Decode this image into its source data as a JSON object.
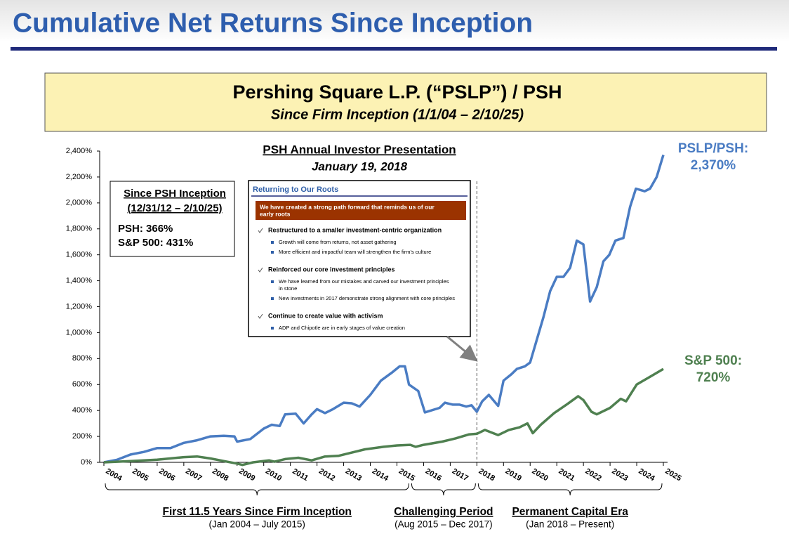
{
  "header": {
    "title": "Cumulative Net Returns Since Inception"
  },
  "banner": {
    "title": "Pershing Square L.P. (“PSLP”) / PSH",
    "subtitle": "Since Firm Inception (1/1/04 – 2/10/25)"
  },
  "chart_data": {
    "type": "line",
    "xlim": [
      2004,
      2025
    ],
    "xticks": [
      2004,
      2005,
      2006,
      2007,
      2008,
      2009,
      2010,
      2011,
      2012,
      2013,
      2014,
      2015,
      2016,
      2017,
      2018,
      2019,
      2020,
      2021,
      2022,
      2023,
      2024,
      2025
    ],
    "ylim": [
      0,
      2400
    ],
    "yticks": [
      {
        "value": 0,
        "label": "0%"
      },
      {
        "value": 200,
        "label": "200%"
      },
      {
        "value": 400,
        "label": "400%"
      },
      {
        "value": 600,
        "label": "600%"
      },
      {
        "value": 800,
        "label": "800%"
      },
      {
        "value": 1000,
        "label": "1,000%"
      },
      {
        "value": 1200,
        "label": "1,200%"
      },
      {
        "value": 1400,
        "label": "1,400%"
      },
      {
        "value": 1600,
        "label": "1,600%"
      },
      {
        "value": 1800,
        "label": "1,800%"
      },
      {
        "value": 2000,
        "label": "2,000%"
      },
      {
        "value": 2200,
        "label": "2,200%"
      },
      {
        "value": 2400,
        "label": "2,400%"
      }
    ],
    "grid": false,
    "series": [
      {
        "name": "PSLP/PSH:",
        "end_label": "2,370%",
        "color": "#4a7cc3",
        "x": [
          2004,
          2004.5,
          2005,
          2005.5,
          2006,
          2006.5,
          2007,
          2007.5,
          2008,
          2008.5,
          2008.9,
          2009,
          2009.5,
          2010,
          2010.3,
          2010.6,
          2010.8,
          2011.2,
          2011.5,
          2011.8,
          2012,
          2012.3,
          2012.6,
          2013,
          2013.3,
          2013.6,
          2014,
          2014.4,
          2014.8,
          2015.1,
          2015.3,
          2015.45,
          2015.8,
          2016.05,
          2016.6,
          2016.8,
          2017.1,
          2017.35,
          2017.6,
          2017.8,
          2018,
          2018.2,
          2018.45,
          2018.8,
          2019,
          2019.3,
          2019.5,
          2019.8,
          2020,
          2020.3,
          2020.5,
          2020.75,
          2021,
          2021.25,
          2021.5,
          2021.75,
          2022,
          2022.25,
          2022.5,
          2022.75,
          2022.97,
          2023.2,
          2023.5,
          2023.75,
          2023.97,
          2024.3,
          2024.5,
          2024.75,
          2025
        ],
        "values": [
          0,
          20,
          60,
          80,
          110,
          110,
          150,
          170,
          200,
          205,
          200,
          160,
          180,
          260,
          290,
          280,
          370,
          375,
          300,
          370,
          410,
          380,
          410,
          460,
          455,
          430,
          520,
          630,
          690,
          740,
          740,
          600,
          550,
          385,
          420,
          460,
          445,
          445,
          430,
          440,
          390,
          470,
          520,
          435,
          630,
          680,
          720,
          740,
          770,
          980,
          1120,
          1320,
          1430,
          1430,
          1500,
          1710,
          1680,
          1240,
          1350,
          1550,
          1600,
          1710,
          1730,
          1970,
          2110,
          2090,
          2110,
          2200,
          2370
        ]
      },
      {
        "name": "S&P 500:",
        "end_label": "720%",
        "color": "#4f8050",
        "x": [
          2004,
          2005,
          2006,
          2007,
          2007.5,
          2008,
          2008.5,
          2009,
          2009.2,
          2009.6,
          2010.2,
          2010.4,
          2010.8,
          2011.3,
          2011.8,
          2012.3,
          2012.8,
          2013.2,
          2013.8,
          2014.5,
          2015,
          2015.5,
          2015.7,
          2016,
          2016.7,
          2017.2,
          2017.7,
          2018,
          2018.3,
          2018.8,
          2019.2,
          2019.6,
          2019.9,
          2020.1,
          2020.4,
          2020.9,
          2021.4,
          2021.8,
          2022,
          2022.3,
          2022.5,
          2023,
          2023.4,
          2023.6,
          2024,
          2024.5,
          2025
        ],
        "values": [
          0,
          10,
          20,
          40,
          45,
          30,
          10,
          -10,
          -20,
          0,
          15,
          5,
          25,
          35,
          15,
          45,
          50,
          70,
          100,
          120,
          130,
          135,
          120,
          135,
          160,
          185,
          215,
          220,
          250,
          210,
          250,
          270,
          300,
          225,
          290,
          380,
          450,
          510,
          480,
          390,
          370,
          420,
          490,
          470,
          600,
          660,
          720
        ]
      }
    ],
    "inset": {
      "title": "Since PSH Inception",
      "dates": "(12/31/12 – 2/10/25)",
      "lines": [
        "PSH: 366%",
        "S&P 500: 431%"
      ]
    },
    "presentation": {
      "x": 2018,
      "title": "PSH Annual Investor Presentation",
      "date": "January 19, 2018"
    },
    "periods": [
      {
        "label": "First 11.5 Years Since Firm Inception",
        "dates": "(Jan 2004 – July 2015)",
        "from": 2004,
        "to": 2015.5
      },
      {
        "label": "Challenging Period",
        "dates": "(Aug 2015 – Dec 2017)",
        "from": 2015.5,
        "to": 2018
      },
      {
        "label": "Permanent Capital Era",
        "dates": "(Jan 2018 – Present)",
        "from": 2018,
        "to": 2025
      }
    ]
  },
  "slide": {
    "title": "Returning to Our Roots",
    "banner": [
      "We have created a strong path forward that reminds us of our",
      "early roots"
    ],
    "sections": [
      {
        "heading": "Restructured to a smaller investment-centric organization",
        "bullets": [
          [
            "Growth will come from returns, not asset gathering"
          ],
          [
            "More efficient and impactful team will strengthen the firm’s culture"
          ]
        ]
      },
      {
        "heading": "Reinforced our core investment principles",
        "bullets": [
          [
            "We have learned from our mistakes and carved our investment principles",
            "in stone"
          ],
          [
            "New investments in 2017 demonstrate strong alignment with core principles"
          ]
        ]
      },
      {
        "heading": "Continue to create value with activism",
        "bullets": [
          [
            "ADP and Chipotle are in early stages of value creation"
          ]
        ]
      }
    ]
  }
}
